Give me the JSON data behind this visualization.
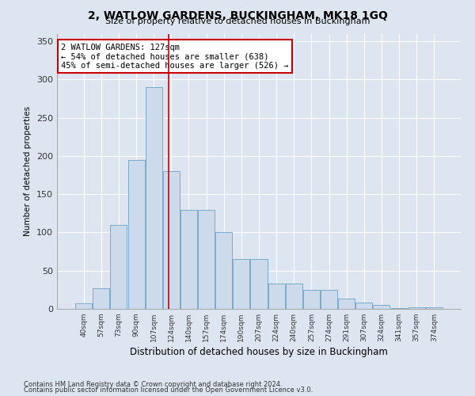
{
  "title": "2, WATLOW GARDENS, BUCKINGHAM, MK18 1GQ",
  "subtitle": "Size of property relative to detached houses in Buckingham",
  "xlabel": "Distribution of detached houses by size in Buckingham",
  "ylabel": "Number of detached properties",
  "footnote1": "Contains HM Land Registry data © Crown copyright and database right 2024.",
  "footnote2": "Contains public sector information licensed under the Open Government Licence v3.0.",
  "categories": [
    "40sqm",
    "57sqm",
    "73sqm",
    "90sqm",
    "107sqm",
    "124sqm",
    "140sqm",
    "157sqm",
    "174sqm",
    "190sqm",
    "207sqm",
    "224sqm",
    "240sqm",
    "257sqm",
    "274sqm",
    "291sqm",
    "307sqm",
    "324sqm",
    "341sqm",
    "357sqm",
    "374sqm"
  ],
  "values": [
    7,
    27,
    110,
    195,
    290,
    180,
    130,
    130,
    100,
    65,
    65,
    33,
    33,
    25,
    25,
    13,
    8,
    5,
    1,
    2,
    2
  ],
  "bar_color": "#ccdaeb",
  "bar_edge_color": "#7aaacb",
  "vline_x": 4.85,
  "vline_color": "#cc0000",
  "annotation_text": "2 WATLOW GARDENS: 127sqm\n← 54% of detached houses are smaller (638)\n45% of semi-detached houses are larger (526) →",
  "annotation_box_color": "#ffffff",
  "annotation_box_edge": "#cc0000",
  "background_color": "#dde6f0",
  "ylim": [
    0,
    360
  ],
  "yticks": [
    0,
    50,
    100,
    150,
    200,
    250,
    300,
    350
  ]
}
